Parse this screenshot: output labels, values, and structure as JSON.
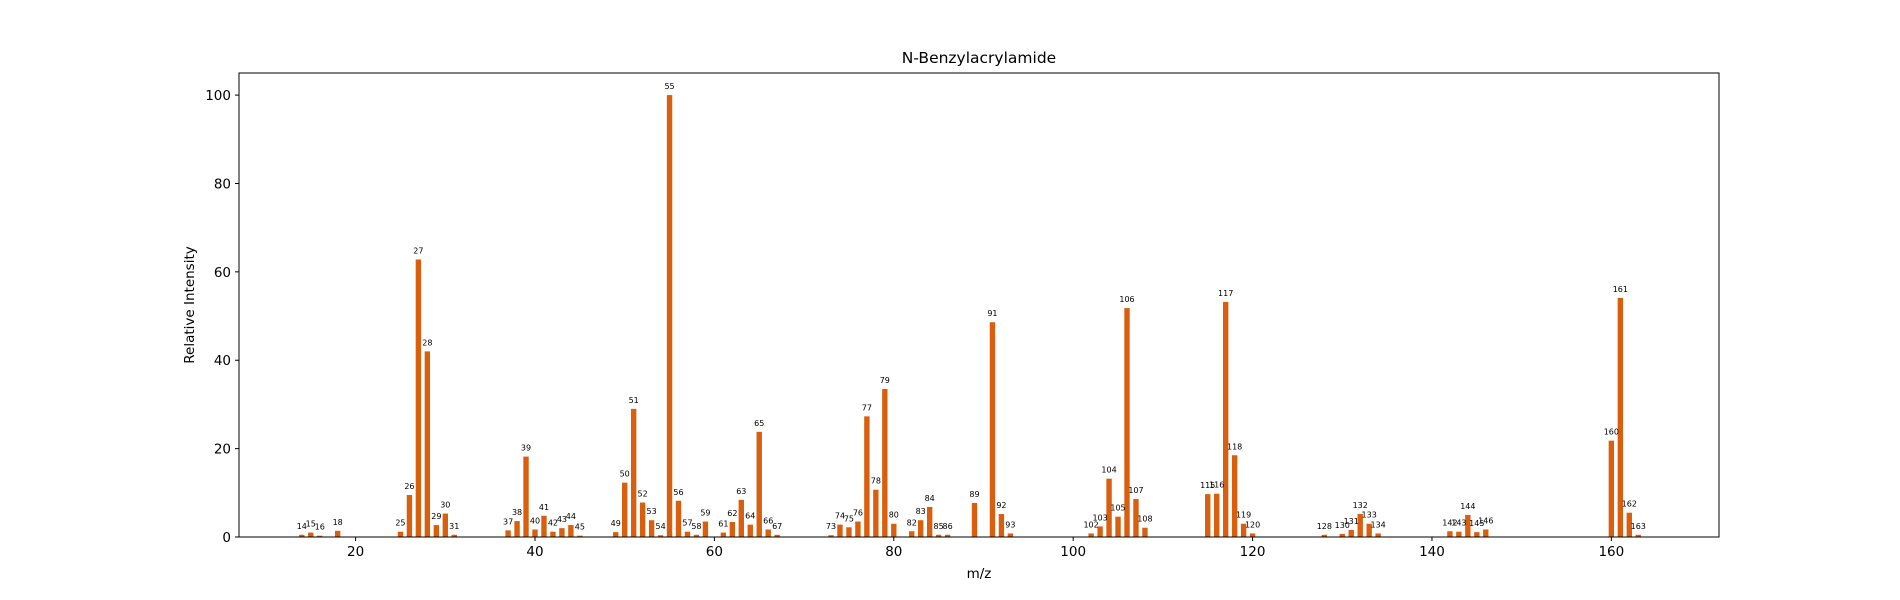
{
  "chart_data": {
    "type": "bar",
    "title": "N-Benzylacrylamide",
    "xlabel": "m/z",
    "ylabel": "Relative Intensity",
    "xlim": [
      7,
      172
    ],
    "ylim": [
      0,
      105
    ],
    "xticks": [
      20,
      40,
      60,
      80,
      100,
      120,
      140,
      160
    ],
    "yticks": [
      0,
      20,
      40,
      60,
      80,
      100
    ],
    "grid": false,
    "bar_color": "#d95f0e",
    "label_peaks": true,
    "x": [
      14,
      15,
      16,
      18,
      25,
      26,
      27,
      28,
      29,
      30,
      31,
      37,
      38,
      39,
      40,
      41,
      42,
      43,
      44,
      45,
      49,
      50,
      51,
      52,
      53,
      54,
      55,
      56,
      57,
      58,
      59,
      61,
      62,
      63,
      64,
      65,
      66,
      67,
      73,
      74,
      75,
      76,
      77,
      78,
      79,
      80,
      82,
      83,
      84,
      85,
      86,
      89,
      91,
      92,
      93,
      102,
      103,
      104,
      105,
      106,
      107,
      108,
      115,
      116,
      117,
      118,
      119,
      120,
      128,
      130,
      131,
      132,
      133,
      134,
      142,
      143,
      144,
      145,
      146,
      160,
      161,
      162,
      163
    ],
    "values": [
      0.5,
      1.0,
      0.3,
      1.4,
      1.2,
      9.5,
      62.8,
      42.0,
      2.7,
      5.3,
      0.5,
      1.5,
      3.6,
      18.2,
      1.7,
      4.8,
      1.2,
      2.0,
      2.7,
      0.3,
      1.1,
      12.3,
      29.0,
      7.8,
      3.8,
      0.4,
      100.0,
      8.2,
      1.2,
      0.5,
      3.5,
      1.0,
      3.4,
      8.4,
      2.8,
      23.8,
      1.7,
      0.5,
      0.4,
      2.8,
      2.2,
      3.5,
      27.3,
      10.7,
      33.5,
      3.0,
      1.3,
      3.8,
      6.8,
      0.5,
      0.5,
      7.7,
      48.6,
      5.2,
      0.8,
      0.8,
      2.4,
      13.2,
      4.6,
      51.8,
      8.6,
      2.1,
      9.7,
      9.8,
      53.2,
      18.5,
      3.0,
      0.8,
      0.5,
      0.7,
      1.6,
      5.2,
      3.0,
      0.8,
      1.3,
      1.2,
      5.0,
      1.1,
      1.7,
      21.8,
      54.1,
      5.5,
      0.5
    ]
  }
}
